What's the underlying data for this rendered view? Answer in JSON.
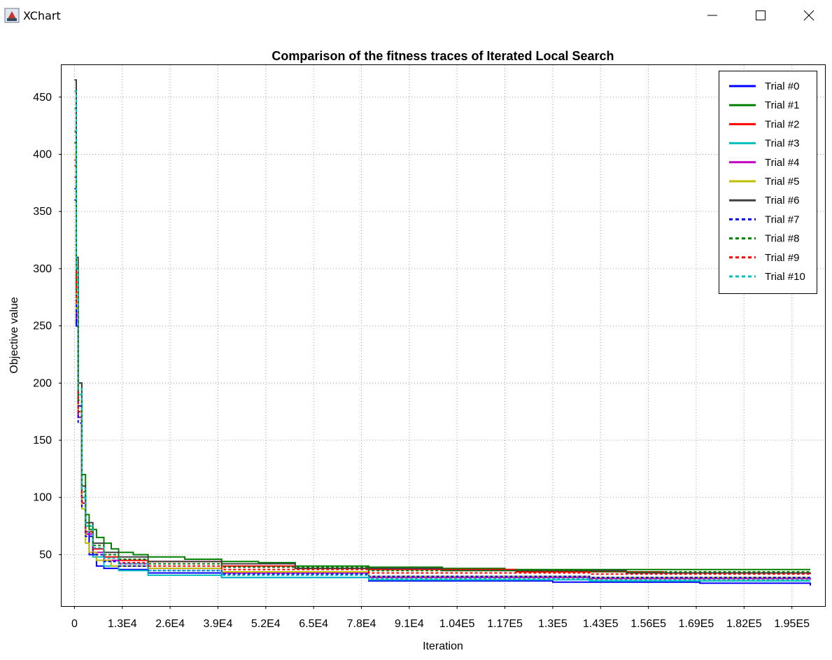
{
  "window": {
    "title": "XChart",
    "controls": [
      "minimize-icon",
      "maximize-icon",
      "close-icon"
    ]
  },
  "chart_data": {
    "type": "line",
    "title": "Comparison of the fitness traces of Iterated Local Search",
    "xlabel": "Iteration",
    "ylabel": "Objective value",
    "xlim": [
      -3500,
      204000
    ],
    "ylim": [
      5,
      478
    ],
    "grid": true,
    "legend_position": "top-right",
    "x_ticks": [
      0,
      13000,
      26000,
      39000,
      52000,
      65000,
      78000,
      91000,
      104000,
      117000,
      130000,
      143000,
      156000,
      169000,
      182000,
      195000
    ],
    "x_tick_labels": [
      "0",
      "1.3E4",
      "2.6E4",
      "3.9E4",
      "5.2E4",
      "6.5E4",
      "7.8E4",
      "9.1E4",
      "1.04E5",
      "1.17E5",
      "1.3E5",
      "1.43E5",
      "1.56E5",
      "1.69E5",
      "1.82E5",
      "1.95E5"
    ],
    "y_ticks": [
      50,
      100,
      150,
      200,
      250,
      300,
      350,
      400,
      450
    ],
    "y_tick_labels": [
      "50",
      "100",
      "150",
      "200",
      "250",
      "300",
      "350",
      "400",
      "450"
    ],
    "series": [
      {
        "name": "Trial #0",
        "color": "#0000ff",
        "dash": "solid",
        "x": [
          0,
          500,
          1000,
          2000,
          3000,
          4000,
          6000,
          8000,
          10000,
          12000,
          20000,
          40000,
          80000,
          130000,
          170000,
          200000
        ],
        "y": [
          360,
          250,
          180,
          100,
          70,
          50,
          40,
          38,
          38,
          37,
          34,
          30,
          27,
          26,
          25,
          23
        ]
      },
      {
        "name": "Trial #1",
        "color": "#008000",
        "dash": "solid",
        "x": [
          0,
          500,
          1000,
          2000,
          3000,
          4000,
          6000,
          8000,
          10000,
          12000,
          16000,
          20000,
          30000,
          40000,
          50000,
          60000,
          80000,
          100000,
          117000,
          200000
        ],
        "y": [
          420,
          300,
          200,
          120,
          85,
          72,
          65,
          60,
          55,
          52,
          50,
          48,
          46,
          44,
          43,
          40,
          39,
          38,
          37,
          37
        ]
      },
      {
        "name": "Trial #2",
        "color": "#ff0000",
        "dash": "solid",
        "x": [
          0,
          500,
          1000,
          2000,
          3000,
          5000,
          8000,
          12000,
          20000,
          40000,
          60000,
          80000,
          120000,
          160000,
          200000
        ],
        "y": [
          390,
          260,
          170,
          95,
          70,
          55,
          48,
          45,
          44,
          40,
          38,
          37,
          35,
          34,
          33
        ]
      },
      {
        "name": "Trial #3",
        "color": "#00bfbf",
        "dash": "solid",
        "x": [
          0,
          500,
          1000,
          2000,
          3000,
          5000,
          8000,
          12000,
          20000,
          40000,
          80000,
          140000,
          200000
        ],
        "y": [
          440,
          290,
          190,
          100,
          70,
          48,
          40,
          36,
          32,
          30,
          28,
          27,
          27
        ]
      },
      {
        "name": "Trial #4",
        "color": "#bf00bf",
        "dash": "solid",
        "x": [
          0,
          500,
          1000,
          2000,
          3000,
          5000,
          8000,
          12000,
          20000,
          40000,
          80000,
          140000,
          200000
        ],
        "y": [
          380,
          255,
          170,
          95,
          68,
          52,
          45,
          42,
          38,
          34,
          30,
          29,
          28
        ]
      },
      {
        "name": "Trial #5",
        "color": "#bfbf00",
        "dash": "solid",
        "x": [
          0,
          500,
          1000,
          2000,
          3000,
          4000,
          6000,
          10000,
          20000,
          40000,
          80000,
          140000,
          200000
        ],
        "y": [
          400,
          265,
          175,
          90,
          60,
          52,
          45,
          40,
          38,
          35,
          31,
          30,
          30
        ]
      },
      {
        "name": "Trial #6",
        "color": "#404040",
        "dash": "solid",
        "x": [
          0,
          500,
          1000,
          2000,
          3000,
          5000,
          8000,
          12000,
          20000,
          40000,
          60000,
          100000,
          150000,
          200000
        ],
        "y": [
          465,
          310,
          200,
          110,
          78,
          60,
          52,
          48,
          44,
          42,
          38,
          36,
          34,
          34
        ]
      },
      {
        "name": "Trial #7",
        "color": "#0000ff",
        "dash": "dotted",
        "x": [
          0,
          500,
          1000,
          2000,
          3000,
          5000,
          8000,
          12000,
          20000,
          40000,
          80000,
          140000,
          200000
        ],
        "y": [
          370,
          250,
          165,
          92,
          66,
          50,
          44,
          40,
          36,
          33,
          31,
          30,
          29
        ]
      },
      {
        "name": "Trial #8",
        "color": "#008000",
        "dash": "dotted",
        "x": [
          0,
          500,
          1000,
          2000,
          3000,
          5000,
          8000,
          12000,
          20000,
          40000,
          80000,
          140000,
          200000
        ],
        "y": [
          410,
          280,
          185,
          105,
          75,
          58,
          50,
          46,
          42,
          39,
          36,
          35,
          35
        ]
      },
      {
        "name": "Trial #9",
        "color": "#ff0000",
        "dash": "dotted",
        "x": [
          0,
          500,
          1000,
          2000,
          3000,
          5000,
          8000,
          12000,
          20000,
          40000,
          80000,
          140000,
          200000
        ],
        "y": [
          395,
          270,
          175,
          96,
          70,
          55,
          47,
          43,
          40,
          37,
          34,
          33,
          32
        ]
      },
      {
        "name": "Trial #10",
        "color": "#00bfbf",
        "dash": "dotted",
        "x": [
          0,
          500,
          1000,
          2000,
          3000,
          5000,
          8000,
          12000,
          20000,
          40000,
          80000,
          140000,
          200000
        ],
        "y": [
          455,
          300,
          195,
          108,
          75,
          56,
          47,
          42,
          36,
          32,
          29,
          28,
          28
        ]
      }
    ]
  }
}
